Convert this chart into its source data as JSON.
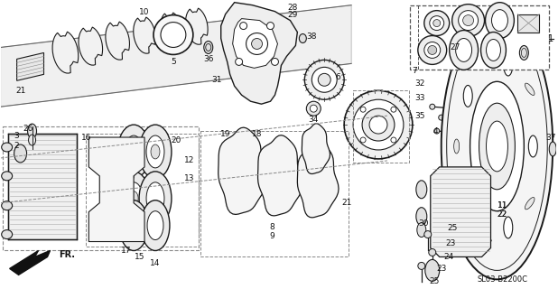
{
  "bg_color": "#ffffff",
  "line_color": "#1a1a1a",
  "text_color": "#111111",
  "figsize": [
    6.18,
    3.2
  ],
  "dpi": 100,
  "diagram_ref": "SL03-B2200C"
}
